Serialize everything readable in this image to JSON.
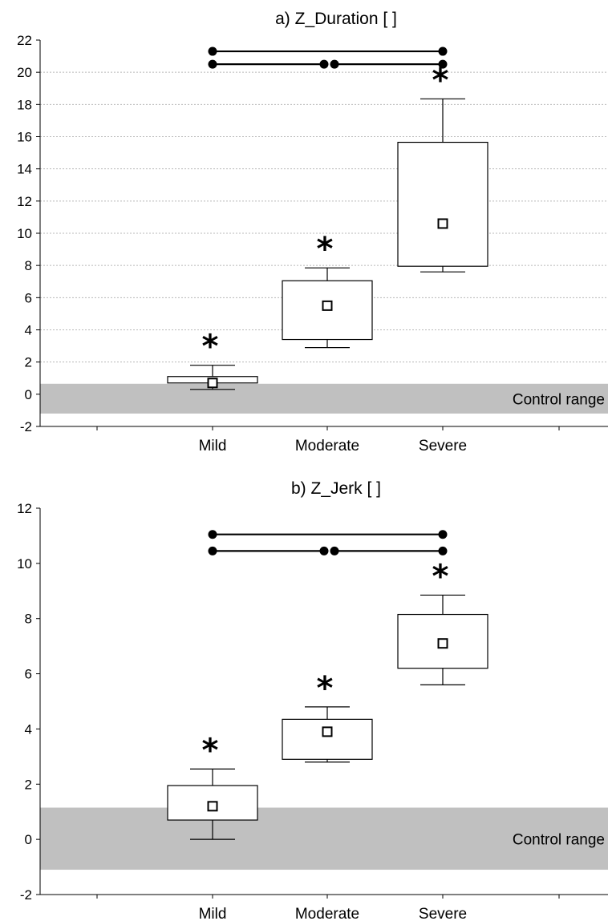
{
  "chart_data": [
    {
      "type": "box",
      "title": "a) Z_Duration [ ]",
      "categories": [
        "Mild",
        "Moderate",
        "Severe"
      ],
      "ylim": [
        -2,
        22
      ],
      "yticks": [
        -2,
        0,
        2,
        4,
        6,
        8,
        10,
        12,
        14,
        16,
        18,
        20,
        22
      ],
      "grid": true,
      "band": {
        "label": "Control range",
        "from": -1.2,
        "to": 0.65
      },
      "boxes": [
        {
          "category": "Mild",
          "whisker_low": 0.3,
          "q1": 0.7,
          "median": 0.7,
          "q3": 1.1,
          "whisker_high": 1.8,
          "marker": "*"
        },
        {
          "category": "Moderate",
          "whisker_low": 2.9,
          "q1": 3.4,
          "median": 5.5,
          "q3": 7.05,
          "whisker_high": 7.85,
          "marker": "*"
        },
        {
          "category": "Severe",
          "whisker_low": 7.6,
          "q1": 7.95,
          "median": 10.6,
          "q3": 15.65,
          "whisker_high": 18.35,
          "marker": "*"
        }
      ],
      "comparisons": [
        {
          "from": "Mild",
          "to": "Severe",
          "y": 21.3
        },
        {
          "from": "Mild",
          "to": "Moderate",
          "y": 20.5
        },
        {
          "from": "Moderate",
          "to": "Severe",
          "y": 20.5
        }
      ]
    },
    {
      "type": "box",
      "title": "b) Z_Jerk [ ]",
      "categories": [
        "Mild",
        "Moderate",
        "Severe"
      ],
      "ylim": [
        -2,
        12
      ],
      "yticks": [
        -2,
        0,
        2,
        4,
        6,
        8,
        10,
        12
      ],
      "grid": false,
      "band": {
        "label": "Control range",
        "from": -1.1,
        "to": 1.15
      },
      "boxes": [
        {
          "category": "Mild",
          "whisker_low": 0.0,
          "q1": 0.7,
          "median": 1.2,
          "q3": 1.95,
          "whisker_high": 2.55,
          "marker": "*"
        },
        {
          "category": "Moderate",
          "whisker_low": 2.8,
          "q1": 2.9,
          "median": 3.9,
          "q3": 4.35,
          "whisker_high": 4.8,
          "marker": "*"
        },
        {
          "category": "Severe",
          "whisker_low": 5.6,
          "q1": 6.2,
          "median": 7.1,
          "q3": 8.15,
          "whisker_high": 8.85,
          "marker": "*"
        }
      ],
      "comparisons": [
        {
          "from": "Mild",
          "to": "Severe",
          "y": 11.05
        },
        {
          "from": "Mild",
          "to": "Moderate",
          "y": 10.45
        },
        {
          "from": "Moderate",
          "to": "Severe",
          "y": 10.45
        }
      ]
    }
  ]
}
